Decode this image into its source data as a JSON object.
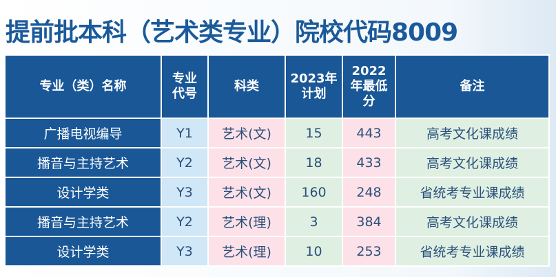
{
  "title": "提前批本科（艺术类专业）院校代码8009",
  "headers": [
    "专业（类）名称",
    "专业代号",
    "科类",
    "2023年计划",
    "2022年最低分",
    "备注"
  ],
  "rows": [
    {
      "name": "广播电视编导",
      "code": "Y1",
      "subject": "艺术(文)",
      "plan": "15",
      "min": "443",
      "note": "高考文化课成绩"
    },
    {
      "name": "播音与主持艺术",
      "code": "Y2",
      "subject": "艺术(文)",
      "plan": "18",
      "min": "433",
      "note": "高考文化课成绩"
    },
    {
      "name": "设计学类",
      "code": "Y3",
      "subject": "艺术(文)",
      "plan": "160",
      "min": "248",
      "note": "省统考专业课成绩"
    },
    {
      "name": "播音与主持艺术",
      "code": "Y2",
      "subject": "艺术(理)",
      "plan": "3",
      "min": "384",
      "note": "高考文化课成绩"
    },
    {
      "name": "设计学类",
      "code": "Y3",
      "subject": "艺术(理)",
      "plan": "10",
      "min": "253",
      "note": "省统考专业课成绩"
    }
  ],
  "colors": {
    "header": "#1a5796",
    "title": "#1b5a9a",
    "code": "#cfe7f6",
    "pink": "#fde1e8",
    "green": "#dff0e3"
  }
}
